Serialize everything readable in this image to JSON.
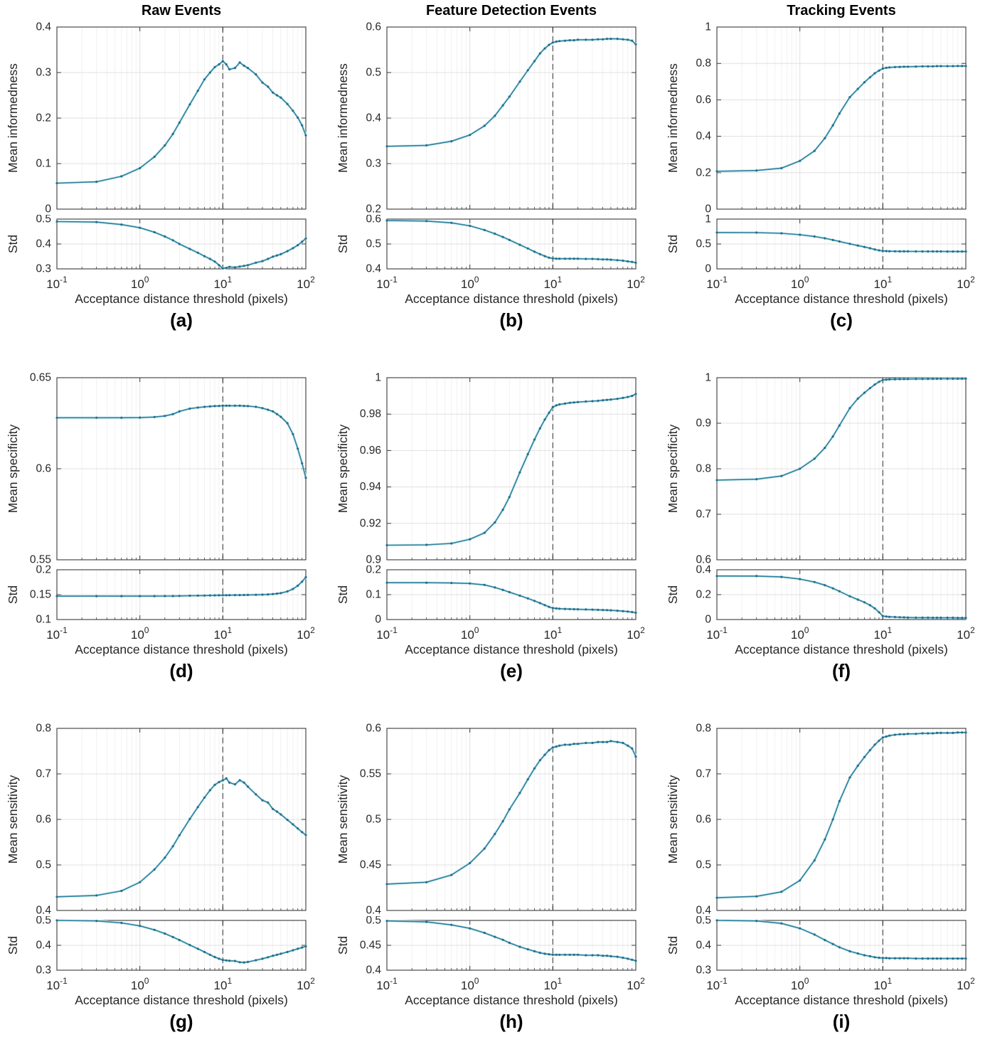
{
  "figure": {
    "column_titles": [
      "Raw Events",
      "Feature Detection Events",
      "Tracking Events"
    ],
    "row_metrics": [
      "Mean informedness",
      "Mean specificity",
      "Mean sensitivity"
    ],
    "x_axis_label": "Acceptance distance threshold (pixels)"
  },
  "chart_data": {
    "type": "line",
    "x_scale": "log",
    "x_range": [
      0.1,
      100
    ],
    "vline_x": 10,
    "grid": "on",
    "legend": "none",
    "colors": {
      "line": "#2e7f9a",
      "marker": "#24708c",
      "halo": "#c9ecf5",
      "vline": "#5c5c5c",
      "axis": "#3a3a3a",
      "grid_major": "#e0e0e0",
      "grid_minor": "#f1f1f1",
      "text": "#262626"
    },
    "x_ticks": [
      0.1,
      1,
      10,
      100
    ],
    "x_tick_display": [
      {
        "base": "10",
        "exp": "-1"
      },
      {
        "base": "10",
        "exp": "0"
      },
      {
        "base": "10",
        "exp": "1"
      },
      {
        "base": "10",
        "exp": "2"
      }
    ],
    "x": [
      0.1,
      0.3,
      0.6,
      1,
      1.5,
      2,
      2.5,
      3,
      4,
      5,
      6,
      7,
      8,
      9,
      10,
      11,
      12,
      14,
      16,
      18,
      20,
      25,
      30,
      35,
      40,
      45,
      50,
      60,
      70,
      80,
      90,
      100
    ],
    "panels": [
      {
        "letter": "(a)",
        "title": "Raw Events",
        "xlabel": "Acceptance distance threshold (pixels)",
        "main": {
          "ylabel": "Mean informedness",
          "ylim": [
            0,
            0.4
          ],
          "yticks": [
            0,
            0.1,
            0.2,
            0.3,
            0.4
          ],
          "y": [
            0.057,
            0.06,
            0.072,
            0.09,
            0.115,
            0.14,
            0.165,
            0.19,
            0.23,
            0.26,
            0.285,
            0.3,
            0.312,
            0.318,
            0.325,
            0.318,
            0.307,
            0.31,
            0.322,
            0.315,
            0.31,
            0.296,
            0.278,
            0.269,
            0.256,
            0.25,
            0.245,
            0.231,
            0.216,
            0.201,
            0.184,
            0.162
          ]
        },
        "std": {
          "ylabel": "Std",
          "ylim": [
            0.3,
            0.5
          ],
          "yticks": [
            0.3,
            0.4,
            0.5
          ],
          "y": [
            0.49,
            0.488,
            0.478,
            0.465,
            0.447,
            0.43,
            0.415,
            0.4,
            0.38,
            0.365,
            0.351,
            0.34,
            0.329,
            0.315,
            0.302,
            0.304,
            0.308,
            0.306,
            0.309,
            0.312,
            0.315,
            0.325,
            0.331,
            0.34,
            0.349,
            0.354,
            0.359,
            0.371,
            0.383,
            0.395,
            0.409,
            0.422
          ]
        }
      },
      {
        "letter": "(b)",
        "title": "Feature Detection Events",
        "xlabel": "Acceptance distance threshold (pixels)",
        "main": {
          "ylabel": "Mean informedness",
          "ylim": [
            0.2,
            0.6
          ],
          "yticks": [
            0.2,
            0.3,
            0.4,
            0.5,
            0.6
          ],
          "y": [
            0.338,
            0.34,
            0.349,
            0.363,
            0.383,
            0.405,
            0.428,
            0.447,
            0.48,
            0.505,
            0.525,
            0.542,
            0.553,
            0.561,
            0.566,
            0.568,
            0.569,
            0.57,
            0.571,
            0.571,
            0.572,
            0.572,
            0.572,
            0.573,
            0.573,
            0.574,
            0.574,
            0.574,
            0.573,
            0.572,
            0.57,
            0.562
          ]
        },
        "std": {
          "ylabel": "Std",
          "ylim": [
            0.4,
            0.6
          ],
          "yticks": [
            0.4,
            0.5,
            0.6
          ],
          "y": [
            0.594,
            0.592,
            0.585,
            0.573,
            0.556,
            0.541,
            0.528,
            0.516,
            0.497,
            0.482,
            0.469,
            0.459,
            0.451,
            0.445,
            0.442,
            0.441,
            0.441,
            0.441,
            0.441,
            0.441,
            0.441,
            0.44,
            0.44,
            0.439,
            0.438,
            0.438,
            0.437,
            0.435,
            0.433,
            0.43,
            0.428,
            0.425
          ]
        }
      },
      {
        "letter": "(c)",
        "title": "Tracking Events",
        "xlabel": "Acceptance distance threshold (pixels)",
        "main": {
          "ylabel": "Mean informedness",
          "ylim": [
            0,
            1
          ],
          "yticks": [
            0,
            0.2,
            0.4,
            0.6,
            0.8,
            1
          ],
          "y": [
            0.208,
            0.212,
            0.225,
            0.265,
            0.32,
            0.39,
            0.46,
            0.525,
            0.615,
            0.66,
            0.697,
            0.724,
            0.746,
            0.761,
            0.772,
            0.776,
            0.778,
            0.78,
            0.781,
            0.782,
            0.782,
            0.783,
            0.784,
            0.784,
            0.784,
            0.785,
            0.785,
            0.785,
            0.785,
            0.786,
            0.786,
            0.786
          ]
        },
        "std": {
          "ylabel": "Std",
          "ylim": [
            0,
            1
          ],
          "yticks": [
            0,
            0.5,
            1
          ],
          "y": [
            0.73,
            0.728,
            0.714,
            0.685,
            0.65,
            0.614,
            0.58,
            0.55,
            0.503,
            0.468,
            0.44,
            0.415,
            0.39,
            0.372,
            0.36,
            0.357,
            0.355,
            0.353,
            0.352,
            0.352,
            0.351,
            0.35,
            0.35,
            0.35,
            0.35,
            0.35,
            0.35,
            0.349,
            0.349,
            0.349,
            0.349,
            0.349
          ]
        }
      },
      {
        "letter": "(d)",
        "title": "",
        "xlabel": "Acceptance distance threshold (pixels)",
        "main": {
          "ylabel": "Mean specificity",
          "ylim": [
            0.55,
            0.65
          ],
          "yticks": [
            0.55,
            0.6,
            0.65
          ],
          "y": [
            0.628,
            0.628,
            0.628,
            0.6281,
            0.6284,
            0.629,
            0.63,
            0.6315,
            0.633,
            0.6336,
            0.634,
            0.6342,
            0.6344,
            0.6345,
            0.6346,
            0.6346,
            0.6346,
            0.6346,
            0.6346,
            0.6345,
            0.6344,
            0.634,
            0.6333,
            0.6324,
            0.6315,
            0.63,
            0.6285,
            0.625,
            0.619,
            0.611,
            0.603,
            0.595
          ]
        },
        "std": {
          "ylabel": "Std",
          "ylim": [
            0.1,
            0.2
          ],
          "yticks": [
            0.1,
            0.15,
            0.2
          ],
          "y": [
            0.147,
            0.147,
            0.147,
            0.147,
            0.147,
            0.1471,
            0.1472,
            0.1474,
            0.1478,
            0.148,
            0.1482,
            0.1484,
            0.1486,
            0.1487,
            0.1488,
            0.1489,
            0.149,
            0.1491,
            0.1492,
            0.1493,
            0.1495,
            0.1497,
            0.15,
            0.1505,
            0.1512,
            0.152,
            0.1532,
            0.1565,
            0.1615,
            0.168,
            0.176,
            0.185
          ]
        }
      },
      {
        "letter": "(e)",
        "title": "",
        "xlabel": "Acceptance distance threshold (pixels)",
        "main": {
          "ylabel": "Mean specificity",
          "ylim": [
            0.9,
            1
          ],
          "yticks": [
            0.9,
            0.92,
            0.94,
            0.96,
            0.98,
            1
          ],
          "y": [
            0.908,
            0.9082,
            0.909,
            0.9113,
            0.9148,
            0.9205,
            0.9275,
            0.9345,
            0.948,
            0.958,
            0.966,
            0.9722,
            0.977,
            0.9808,
            0.9838,
            0.9848,
            0.9853,
            0.9858,
            0.9862,
            0.9864,
            0.9866,
            0.9869,
            0.9871,
            0.9873,
            0.9876,
            0.9878,
            0.988,
            0.9884,
            0.9889,
            0.9894,
            0.99,
            0.991
          ]
        },
        "std": {
          "ylabel": "Std",
          "ylim": [
            0,
            0.2
          ],
          "yticks": [
            0,
            0.1,
            0.2
          ],
          "y": [
            0.148,
            0.148,
            0.147,
            0.145,
            0.139,
            0.129,
            0.119,
            0.11,
            0.096,
            0.085,
            0.075,
            0.066,
            0.058,
            0.051,
            0.046,
            0.0445,
            0.0435,
            0.0425,
            0.042,
            0.0415,
            0.041,
            0.0402,
            0.0396,
            0.039,
            0.0383,
            0.0377,
            0.037,
            0.0355,
            0.0338,
            0.032,
            0.03,
            0.0275
          ]
        }
      },
      {
        "letter": "(f)",
        "title": "",
        "xlabel": "Acceptance distance threshold (pixels)",
        "main": {
          "ylabel": "Mean specificity",
          "ylim": [
            0.6,
            1
          ],
          "yticks": [
            0.6,
            0.7,
            0.8,
            0.9,
            1
          ],
          "y": [
            0.775,
            0.777,
            0.784,
            0.8,
            0.822,
            0.846,
            0.871,
            0.895,
            0.933,
            0.954,
            0.967,
            0.977,
            0.985,
            0.991,
            0.995,
            0.9958,
            0.9962,
            0.9966,
            0.9968,
            0.997,
            0.9971,
            0.9973,
            0.9974,
            0.9975,
            0.9975,
            0.9976,
            0.9976,
            0.9977,
            0.9977,
            0.9978,
            0.9978,
            0.9978
          ]
        },
        "std": {
          "ylabel": "Std",
          "ylim": [
            0,
            0.4
          ],
          "yticks": [
            0,
            0.2,
            0.4
          ],
          "y": [
            0.35,
            0.349,
            0.342,
            0.325,
            0.301,
            0.276,
            0.251,
            0.227,
            0.187,
            0.16,
            0.138,
            0.115,
            0.09,
            0.058,
            0.028,
            0.024,
            0.022,
            0.02,
            0.018,
            0.017,
            0.016,
            0.015,
            0.015,
            0.015,
            0.014,
            0.014,
            0.014,
            0.014,
            0.014,
            0.013,
            0.013,
            0.013
          ]
        }
      },
      {
        "letter": "(g)",
        "title": "",
        "xlabel": "Acceptance distance threshold (pixels)",
        "main": {
          "ylabel": "Mean sensitivity",
          "ylim": [
            0.4,
            0.8
          ],
          "yticks": [
            0.4,
            0.5,
            0.6,
            0.7,
            0.8
          ],
          "y": [
            0.43,
            0.433,
            0.443,
            0.462,
            0.49,
            0.516,
            0.541,
            0.565,
            0.601,
            0.627,
            0.648,
            0.664,
            0.676,
            0.682,
            0.686,
            0.69,
            0.681,
            0.677,
            0.686,
            0.681,
            0.672,
            0.655,
            0.642,
            0.637,
            0.623,
            0.617,
            0.611,
            0.599,
            0.589,
            0.58,
            0.572,
            0.566
          ]
        },
        "std": {
          "ylabel": "Std",
          "ylim": [
            0.3,
            0.5
          ],
          "yticks": [
            0.3,
            0.4,
            0.5
          ],
          "y": [
            0.5,
            0.498,
            0.49,
            0.478,
            0.462,
            0.447,
            0.433,
            0.421,
            0.401,
            0.386,
            0.373,
            0.362,
            0.353,
            0.346,
            0.341,
            0.339,
            0.338,
            0.337,
            0.332,
            0.331,
            0.333,
            0.34,
            0.346,
            0.352,
            0.358,
            0.362,
            0.366,
            0.373,
            0.38,
            0.386,
            0.391,
            0.396
          ]
        }
      },
      {
        "letter": "(h)",
        "title": "",
        "xlabel": "Acceptance distance threshold (pixels)",
        "main": {
          "ylabel": "Mean sensitivity",
          "ylim": [
            0.4,
            0.6
          ],
          "yticks": [
            0.4,
            0.45,
            0.5,
            0.55,
            0.6
          ],
          "y": [
            0.429,
            0.431,
            0.439,
            0.452,
            0.468,
            0.484,
            0.498,
            0.511,
            0.529,
            0.544,
            0.556,
            0.565,
            0.571,
            0.576,
            0.579,
            0.58,
            0.581,
            0.582,
            0.582,
            0.583,
            0.583,
            0.584,
            0.584,
            0.585,
            0.585,
            0.585,
            0.586,
            0.585,
            0.584,
            0.581,
            0.578,
            0.569
          ]
        },
        "std": {
          "ylabel": "Std",
          "ylim": [
            0.4,
            0.5
          ],
          "yticks": [
            0.4,
            0.45,
            0.5
          ],
          "y": [
            0.499,
            0.497,
            0.491,
            0.484,
            0.475,
            0.467,
            0.461,
            0.455,
            0.447,
            0.442,
            0.438,
            0.435,
            0.433,
            0.432,
            0.431,
            0.431,
            0.431,
            0.431,
            0.431,
            0.431,
            0.431,
            0.43,
            0.43,
            0.43,
            0.429,
            0.429,
            0.428,
            0.427,
            0.425,
            0.423,
            0.421,
            0.419
          ]
        }
      },
      {
        "letter": "(i)",
        "title": "",
        "xlabel": "Acceptance distance threshold (pixels)",
        "main": {
          "ylabel": "Mean sensitivity",
          "ylim": [
            0.4,
            0.8
          ],
          "yticks": [
            0.4,
            0.5,
            0.6,
            0.7,
            0.8
          ],
          "y": [
            0.428,
            0.431,
            0.441,
            0.466,
            0.51,
            0.556,
            0.6,
            0.64,
            0.692,
            0.718,
            0.737,
            0.752,
            0.764,
            0.773,
            0.78,
            0.782,
            0.784,
            0.786,
            0.787,
            0.787,
            0.788,
            0.788,
            0.789,
            0.789,
            0.789,
            0.79,
            0.79,
            0.79,
            0.79,
            0.791,
            0.791,
            0.791
          ]
        },
        "std": {
          "ylabel": "Std",
          "ylim": [
            0.3,
            0.5
          ],
          "yticks": [
            0.3,
            0.4,
            0.5
          ],
          "y": [
            0.5,
            0.498,
            0.488,
            0.468,
            0.443,
            0.421,
            0.405,
            0.392,
            0.376,
            0.367,
            0.36,
            0.356,
            0.352,
            0.35,
            0.349,
            0.349,
            0.348,
            0.348,
            0.348,
            0.348,
            0.348,
            0.347,
            0.347,
            0.347,
            0.347,
            0.347,
            0.347,
            0.347,
            0.347,
            0.347,
            0.347,
            0.347
          ]
        }
      }
    ]
  }
}
